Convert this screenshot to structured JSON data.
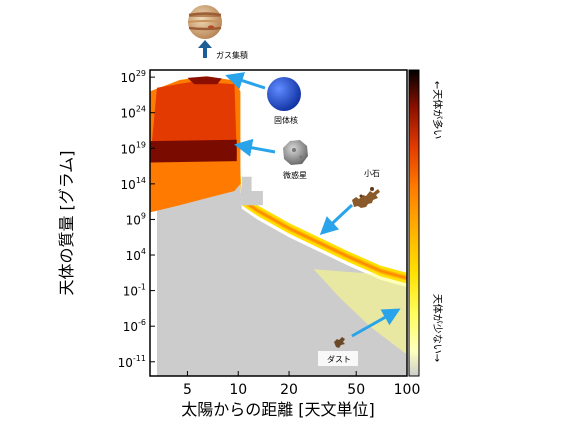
{
  "chart_data": {
    "type": "heatmap",
    "title": "",
    "xlabel": "太陽からの距離 [天文単位]",
    "ylabel": "天体の質量 [グラム]",
    "x_scale": "log",
    "y_scale": "log",
    "xlim": [
      3,
      100
    ],
    "ylim": [
      1e-13,
      1e+30
    ],
    "x_ticks": [
      {
        "value": 5,
        "label": "5"
      },
      {
        "value": 10,
        "label": "10"
      },
      {
        "value": 20,
        "label": "20"
      },
      {
        "value": 50,
        "label": "50"
      },
      {
        "value": 100,
        "label": "100"
      }
    ],
    "y_ticks": [
      {
        "exp": 29,
        "label": "10",
        "sup": "29"
      },
      {
        "exp": 24,
        "label": "10",
        "sup": "24"
      },
      {
        "exp": 19,
        "label": "10",
        "sup": "19"
      },
      {
        "exp": 14,
        "label": "10",
        "sup": "14"
      },
      {
        "exp": 9,
        "label": "10",
        "sup": "9"
      },
      {
        "exp": 4,
        "label": "10",
        "sup": "4"
      },
      {
        "exp": -1,
        "label": "10",
        "sup": "-1"
      },
      {
        "exp": -6,
        "label": "10",
        "sup": "-6"
      },
      {
        "exp": -11,
        "label": "10",
        "sup": "-11"
      }
    ],
    "colorbar": {
      "top_label": "←天体が多い",
      "bottom_label": "天体が少ない→",
      "colors": [
        "#000000",
        "#8a0f00",
        "#e23a00",
        "#ff7a00",
        "#ffb000",
        "#ffe000",
        "#ffff60",
        "#ffffc0",
        "#cccccc"
      ]
    },
    "background_color": "#cccccc",
    "ridge": [
      {
        "au": 3.3,
        "log_mass": 27.0
      },
      {
        "au": 4.5,
        "log_mass": 28.6
      },
      {
        "au": 6.5,
        "log_mass": 29.1
      },
      {
        "au": 9.5,
        "log_mass": 28.5
      },
      {
        "au": 10.5,
        "log_mass": 12.5
      },
      {
        "au": 13,
        "log_mass": 11.0
      },
      {
        "au": 20,
        "log_mass": 8.5
      },
      {
        "au": 30,
        "log_mass": 6.5
      },
      {
        "au": 45,
        "log_mass": 4.5
      },
      {
        "au": 70,
        "log_mass": 2.5
      },
      {
        "au": 100,
        "log_mass": 1.5
      }
    ],
    "annotations": [
      {
        "label": "ガス集積",
        "au": 6.5,
        "log_mass": 29.2,
        "arrow": "up"
      },
      {
        "label": "固体核",
        "au": 7.0,
        "log_mass": 28.5
      },
      {
        "label": "微惑星",
        "au": 8.0,
        "log_mass": 19.0
      },
      {
        "label": "小石",
        "au": 29,
        "log_mass": 6.0
      },
      {
        "label": "ダスト",
        "au": 100,
        "log_mass": -5.5
      }
    ]
  }
}
